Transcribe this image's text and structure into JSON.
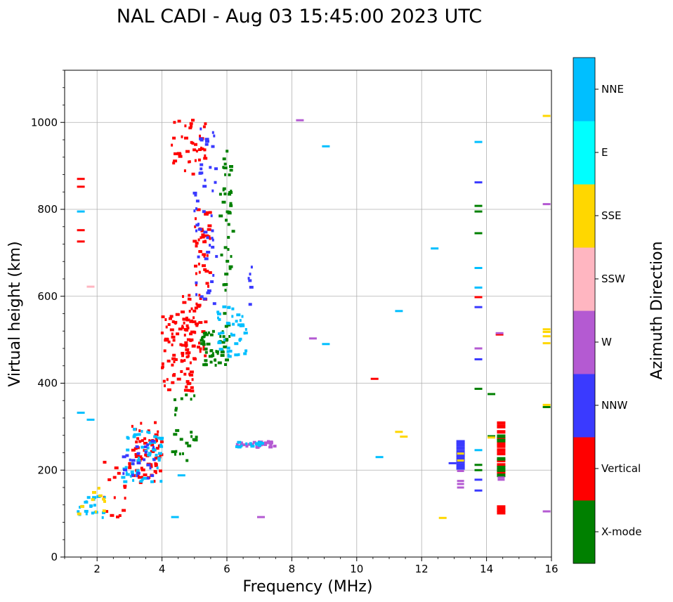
{
  "chart_data": {
    "type": "scatter",
    "title": "NAL CADI - Aug 03 15:45:00 2023 UTC",
    "xlabel": "Frequency (MHz)",
    "ylabel": "Virtual height (km)",
    "xlim": [
      1,
      16
    ],
    "ylim": [
      0,
      1120
    ],
    "xticks": [
      2,
      4,
      6,
      8,
      10,
      12,
      14,
      16
    ],
    "yticks": [
      0,
      200,
      400,
      600,
      800,
      1000
    ],
    "grid": true,
    "colorbar": {
      "label": "Azimuth Direction",
      "categories": [
        "X-mode",
        "Vertical",
        "NNW",
        "W",
        "SSW",
        "SSE",
        "E",
        "NNE"
      ],
      "colors": [
        "#008000",
        "#ff0000",
        "#3a3aff",
        "#b45ad2",
        "#ffb6c1",
        "#ffd700",
        "#00ffff",
        "#00bfff"
      ]
    },
    "clusters": [
      {
        "category": "Vertical",
        "x": [
          3.0,
          4.0
        ],
        "y": [
          170,
          310
        ],
        "n": 70
      },
      {
        "category": "NNE",
        "x": [
          2.8,
          4.0
        ],
        "y": [
          170,
          300
        ],
        "n": 55
      },
      {
        "category": "NNW",
        "x": [
          2.8,
          3.8
        ],
        "y": [
          180,
          270
        ],
        "n": 25
      },
      {
        "category": "Vertical",
        "x": [
          4.0,
          5.0
        ],
        "y": [
          380,
          560
        ],
        "n": 80
      },
      {
        "category": "Vertical",
        "x": [
          4.6,
          5.4
        ],
        "y": [
          450,
          620
        ],
        "n": 50
      },
      {
        "category": "Vertical",
        "x": [
          5.0,
          5.5
        ],
        "y": [
          620,
          800
        ],
        "n": 40
      },
      {
        "category": "Vertical",
        "x": [
          4.3,
          5.4
        ],
        "y": [
          880,
          1010
        ],
        "n": 40
      },
      {
        "category": "NNW",
        "x": [
          5.0,
          5.7
        ],
        "y": [
          580,
          1000
        ],
        "n": 50
      },
      {
        "category": "X-mode",
        "x": [
          5.2,
          6.0
        ],
        "y": [
          440,
          520
        ],
        "n": 45
      },
      {
        "category": "X-mode",
        "x": [
          5.8,
          6.2
        ],
        "y": [
          500,
          940
        ],
        "n": 45
      },
      {
        "category": "X-mode",
        "x": [
          4.3,
          5.1
        ],
        "y": [
          220,
          380
        ],
        "n": 25
      },
      {
        "category": "NNE",
        "x": [
          5.7,
          6.2
        ],
        "y": [
          460,
          580
        ],
        "n": 25
      },
      {
        "category": "NNE",
        "x": [
          6.25,
          6.6
        ],
        "y": [
          465,
          560
        ],
        "n": 20
      },
      {
        "category": "Vertical",
        "x": [
          2.2,
          2.9
        ],
        "y": [
          90,
          220
        ],
        "n": 15
      },
      {
        "category": "NNE",
        "x": [
          1.4,
          2.3
        ],
        "y": [
          90,
          140
        ],
        "n": 20
      },
      {
        "category": "SSE",
        "x": [
          1.4,
          2.4
        ],
        "y": [
          90,
          170
        ],
        "n": 10
      },
      {
        "category": "W",
        "x": [
          6.3,
          7.5
        ],
        "y": [
          252,
          266
        ],
        "n": 30
      },
      {
        "category": "NNE",
        "x": [
          6.3,
          7.2
        ],
        "y": [
          252,
          266
        ],
        "n": 14
      },
      {
        "category": "NNW",
        "x": [
          6.6,
          6.8
        ],
        "y": [
          580,
          680
        ],
        "n": 6
      }
    ],
    "points": [
      {
        "category": "Vertical",
        "x": 1.5,
        "y": 870
      },
      {
        "category": "Vertical",
        "x": 1.5,
        "y": 852
      },
      {
        "category": "Vertical",
        "x": 1.5,
        "y": 752
      },
      {
        "category": "Vertical",
        "x": 1.5,
        "y": 726
      },
      {
        "category": "NNE",
        "x": 1.5,
        "y": 795
      },
      {
        "category": "SSW",
        "x": 1.8,
        "y": 622
      },
      {
        "category": "NNE",
        "x": 1.5,
        "y": 332
      },
      {
        "category": "NNE",
        "x": 1.8,
        "y": 316
      },
      {
        "category": "W",
        "x": 8.25,
        "y": 1005
      },
      {
        "category": "NNE",
        "x": 9.05,
        "y": 945
      },
      {
        "category": "W",
        "x": 8.65,
        "y": 503
      },
      {
        "category": "NNE",
        "x": 9.05,
        "y": 490
      },
      {
        "category": "Vertical",
        "x": 10.55,
        "y": 410
      },
      {
        "category": "NNE",
        "x": 10.7,
        "y": 230
      },
      {
        "category": "NNE",
        "x": 11.3,
        "y": 566
      },
      {
        "category": "SSE",
        "x": 11.3,
        "y": 288
      },
      {
        "category": "SSE",
        "x": 11.45,
        "y": 277
      },
      {
        "category": "NNE",
        "x": 12.4,
        "y": 710
      },
      {
        "category": "SSE",
        "x": 12.65,
        "y": 90
      },
      {
        "category": "NNW",
        "x": 12.95,
        "y": 216
      },
      {
        "category": "NNE",
        "x": 13.75,
        "y": 955
      },
      {
        "category": "NNW",
        "x": 13.75,
        "y": 862
      },
      {
        "category": "X-mode",
        "x": 13.75,
        "y": 808
      },
      {
        "category": "X-mode",
        "x": 13.75,
        "y": 795
      },
      {
        "category": "X-mode",
        "x": 13.75,
        "y": 745
      },
      {
        "category": "NNE",
        "x": 13.75,
        "y": 665
      },
      {
        "category": "NNE",
        "x": 13.75,
        "y": 620
      },
      {
        "category": "Vertical",
        "x": 13.75,
        "y": 598
      },
      {
        "category": "NNW",
        "x": 13.75,
        "y": 575
      },
      {
        "category": "W",
        "x": 13.75,
        "y": 480
      },
      {
        "category": "NNW",
        "x": 13.75,
        "y": 455
      },
      {
        "category": "X-mode",
        "x": 13.75,
        "y": 387
      },
      {
        "category": "NNE",
        "x": 13.75,
        "y": 246
      },
      {
        "category": "X-mode",
        "x": 13.75,
        "y": 212
      },
      {
        "category": "X-mode",
        "x": 13.75,
        "y": 200
      },
      {
        "category": "NNW",
        "x": 13.75,
        "y": 178
      },
      {
        "category": "NNW",
        "x": 13.75,
        "y": 153
      },
      {
        "category": "X-mode",
        "x": 14.15,
        "y": 375
      },
      {
        "category": "X-mode",
        "x": 14.15,
        "y": 278
      },
      {
        "category": "SSE",
        "x": 14.15,
        "y": 275
      },
      {
        "category": "Vertical",
        "x": 14.4,
        "y": 512
      },
      {
        "category": "W",
        "x": 14.4,
        "y": 515
      },
      {
        "category": "SSE",
        "x": 15.85,
        "y": 1015
      },
      {
        "category": "W",
        "x": 15.85,
        "y": 812
      },
      {
        "category": "SSE",
        "x": 15.85,
        "y": 524
      },
      {
        "category": "SSE",
        "x": 15.85,
        "y": 518
      },
      {
        "category": "SSE",
        "x": 15.85,
        "y": 508
      },
      {
        "category": "SSE",
        "x": 15.85,
        "y": 492
      },
      {
        "category": "SSE",
        "x": 15.85,
        "y": 350
      },
      {
        "category": "X-mode",
        "x": 15.85,
        "y": 345
      },
      {
        "category": "W",
        "x": 15.85,
        "y": 105
      },
      {
        "category": "NNE",
        "x": 4.4,
        "y": 92
      },
      {
        "category": "W",
        "x": 7.05,
        "y": 92
      },
      {
        "category": "NNE",
        "x": 4.6,
        "y": 188
      }
    ],
    "columns": [
      {
        "category": "NNW",
        "x": 13.2,
        "y": [
          265,
          258,
          250,
          242,
          235,
          228,
          220,
          212,
          205
        ],
        "heavy": true
      },
      {
        "category": "W",
        "x": 13.2,
        "y": [
          198,
          175,
          168,
          160
        ],
        "heavy": false
      },
      {
        "category": "SSE",
        "x": 13.2,
        "y": [
          238,
          222
        ],
        "heavy": false
      },
      {
        "category": "Vertical",
        "x": 14.45,
        "y": [
          308,
          300,
          288,
          272,
          262,
          255,
          246,
          238,
          222,
          212,
          195,
          115,
          108,
          102
        ],
        "heavy": true
      },
      {
        "category": "X-mode",
        "x": 14.45,
        "y": [
          278,
          268,
          226,
          206,
          200,
          188
        ],
        "heavy": true
      },
      {
        "category": "W",
        "x": 14.45,
        "y": [
          183,
          178
        ],
        "heavy": false
      }
    ]
  }
}
